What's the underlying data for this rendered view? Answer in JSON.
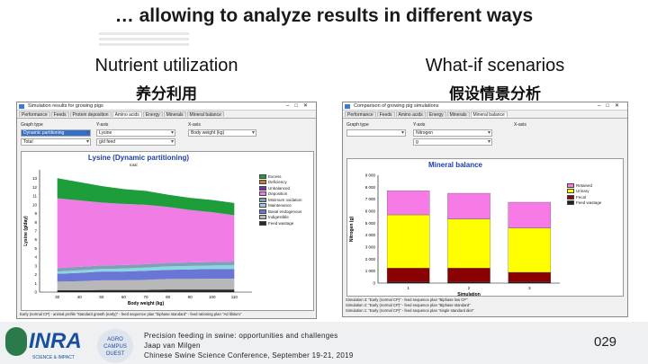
{
  "slide": {
    "title": "… allowing to analyze results in different ways",
    "left_heading": "Nutrient utilization",
    "left_sub": "养分利用",
    "right_heading": "What-if scenarios",
    "right_sub": "假设情景分析"
  },
  "left_window": {
    "title": "Simulation results for growing pigs",
    "tabs": [
      "Performance",
      "Feeds",
      "Protein deposition",
      "Amino acids",
      "Energy",
      "Minerals",
      "Mineral balance"
    ],
    "active_tab": "Amino acids",
    "graph_type_label": "Graph type",
    "y_axis_label": "Y-axis",
    "x_axis_label": "X-axis",
    "graph_type_values": [
      "Dynamic partitioning",
      "Total"
    ],
    "y_axis_values": [
      "Lysine",
      "g/d feed"
    ],
    "x_axis_value": "Body weight (kg)",
    "chart_title": "Lysine (Dynamic partitioning)",
    "chart_subtitle": "total",
    "ylabel": "Lysine (g/day)",
    "xlabel": "Body weight (kg)",
    "status": "Early (normal CP) - animal profile \"standard growth (early)\" - feed sequence plan \"biphase standard\" - feed rationing plan \"Ad libitum\""
  },
  "right_window": {
    "title": "Comparison of growing pig simulations",
    "tabs": [
      "Performance",
      "Feeds",
      "Amino acids",
      "Energy",
      "Minerals",
      "Mineral balance"
    ],
    "active_tab": "Mineral balance",
    "graph_type_label": "Graph type",
    "y_axis_label": "Y-axis",
    "x_axis_label": "X-axis",
    "y_axis_values": [
      "Nitrogen",
      "g"
    ],
    "chart_title": "Mineral balance",
    "ylabel": "Nitrogen (g)",
    "xlabel": "Simulation",
    "status": [
      "Simulation 3: \"Early (normal CP)\" - feed sequence plan \"Biphase low CP\"",
      "Simulation 2: \"Early (normal CP)\" - feed sequence plan \"Biphase standard\"",
      "Simulation 1: \"Early (normal CP)\" - feed sequence plan \"single standard diet\""
    ]
  },
  "footer": {
    "line1": "Precision feeding in swine: opportunities and challenges",
    "line2": "Jaap van Milgen",
    "line3": "Chinese Swine Science Conference, September 19-21, 2019",
    "page": "029",
    "logo": "INRA",
    "logo_sub": "SCIENCE & IMPACT",
    "campus": "AGRO CAMPUS OUEST"
  },
  "chart_data": [
    {
      "type": "area",
      "title": "Lysine (Dynamic partitioning)",
      "subtitle": "total",
      "xlabel": "Body weight (kg)",
      "ylabel": "Lysine (g/day)",
      "x": [
        30,
        40,
        50,
        60,
        70,
        80,
        90,
        100,
        110
      ],
      "xlim": [
        22,
        118
      ],
      "ylim": [
        0,
        14
      ],
      "yticks": [
        0,
        1,
        2,
        3,
        4,
        5,
        6,
        7,
        8,
        9,
        10,
        11,
        12,
        13
      ],
      "legend": [
        "Excess",
        "Deficiency",
        "Unbalanced",
        "Deposition",
        "Minimum oxidation",
        "Maintenance",
        "Basal endogenous",
        "Indigestible",
        "Feed wastage"
      ],
      "legend_colors": [
        "#1e9e3a",
        "#c08030",
        "#7a2fb5",
        "#f07de6",
        "#7fa0b8",
        "#8bd6e0",
        "#6a76d6",
        "#b8b8b8",
        "#2a2a2a"
      ],
      "series": [
        {
          "name": "Feed wastage",
          "values": [
            0.2,
            0.2,
            0.25,
            0.25,
            0.25,
            0.3,
            0.3,
            0.3,
            0.3
          ]
        },
        {
          "name": "Indigestible",
          "values": [
            1.0,
            1.05,
            1.1,
            1.1,
            1.15,
            1.2,
            1.2,
            1.25,
            1.25
          ]
        },
        {
          "name": "Basal endogenous",
          "values": [
            0.9,
            0.95,
            1.0,
            1.0,
            1.05,
            1.05,
            1.1,
            1.1,
            1.1
          ]
        },
        {
          "name": "Maintenance",
          "values": [
            0.25,
            0.3,
            0.3,
            0.35,
            0.35,
            0.4,
            0.4,
            0.4,
            0.45
          ]
        },
        {
          "name": "Minimum oxidation",
          "values": [
            0.4,
            0.4,
            0.4,
            0.4,
            0.4,
            0.4,
            0.4,
            0.4,
            0.4
          ]
        },
        {
          "name": "Deposition",
          "values": [
            8.0,
            7.6,
            7.2,
            7.0,
            6.8,
            6.4,
            6.0,
            5.7,
            5.3
          ]
        },
        {
          "name": "Excess",
          "values": [
            2.3,
            2.1,
            1.9,
            1.7,
            1.6,
            1.4,
            1.4,
            1.4,
            1.4
          ]
        }
      ]
    },
    {
      "type": "bar",
      "title": "Mineral balance",
      "xlabel": "Simulation",
      "ylabel": "Nitrogen (g)",
      "categories": [
        "1",
        "2",
        "3"
      ],
      "ylim": [
        0,
        9000
      ],
      "yticks": [
        0,
        1000,
        2000,
        3000,
        4000,
        5000,
        6000,
        7000,
        8000,
        9000
      ],
      "legend": [
        "Retained",
        "Urinary",
        "Fecal",
        "Feed wastage"
      ],
      "legend_colors": [
        "#f77be6",
        "#ffff00",
        "#8b0000",
        "#222222"
      ],
      "series": [
        {
          "name": "Feed wastage",
          "values": [
            100,
            100,
            100
          ]
        },
        {
          "name": "Fecal",
          "values": [
            1150,
            1150,
            800
          ]
        },
        {
          "name": "Urinary",
          "values": [
            4450,
            4100,
            3700
          ]
        },
        {
          "name": "Retained",
          "values": [
            2000,
            2150,
            2150
          ]
        }
      ]
    }
  ]
}
